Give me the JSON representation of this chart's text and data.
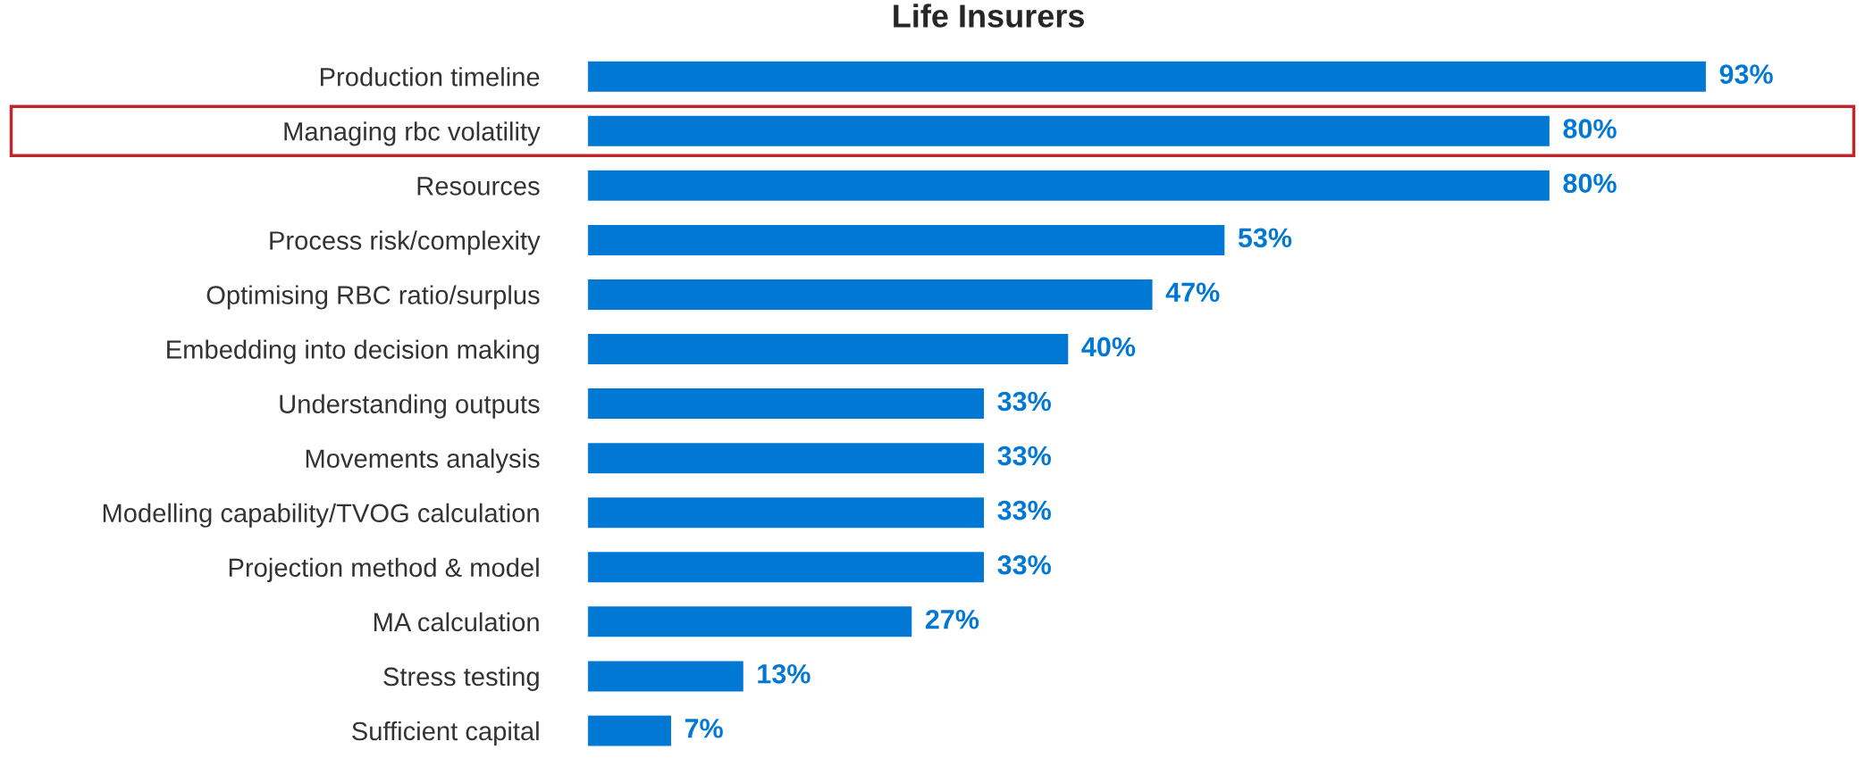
{
  "chart_data": {
    "type": "bar",
    "orientation": "horizontal",
    "title": "Life Insurers",
    "categories": [
      "Production timeline",
      "Managing rbc volatility",
      "Resources",
      "Process risk/complexity",
      "Optimising RBC ratio/surplus",
      "Embedding into decision making",
      "Understanding outputs",
      "Movements analysis",
      "Modelling capability/TVOG calculation",
      "Projection method & model",
      "MA calculation",
      "Stress testing",
      "Sufficient capital"
    ],
    "values": [
      93,
      80,
      80,
      53,
      47,
      40,
      33,
      33,
      33,
      33,
      27,
      13,
      7
    ],
    "value_labels": [
      "93%",
      "80%",
      "80%",
      "53%",
      "47%",
      "40%",
      "33%",
      "33%",
      "33%",
      "33%",
      "27%",
      "13%",
      "7%"
    ],
    "color": "#0078d4",
    "grid": false,
    "legend": false
  }
}
